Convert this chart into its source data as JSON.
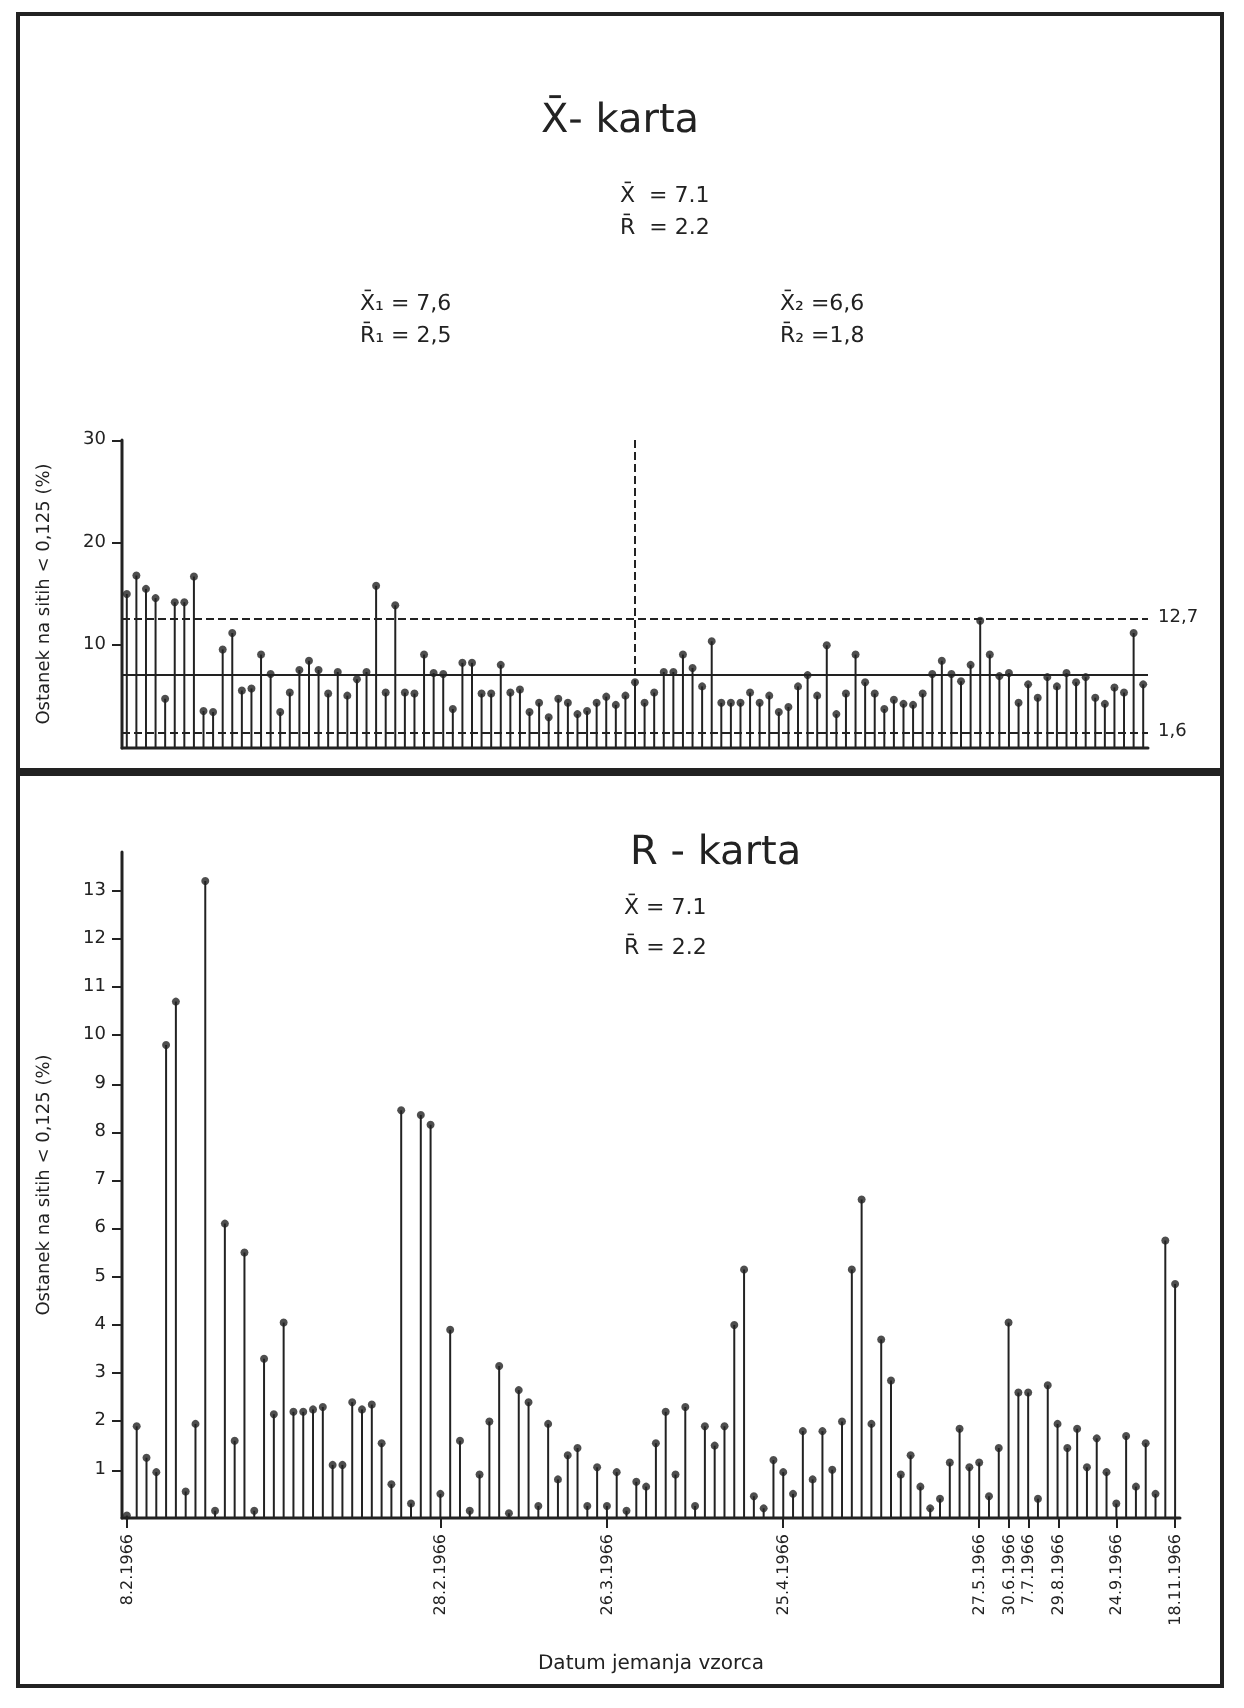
{
  "chart_data": [
    {
      "type": "lollipop",
      "title": "X̄- karta",
      "ylabel": "Ostanek na sitih < 0,125 (%)",
      "annotations": [
        "X̄  = 7.1",
        "R̄  = 2.2",
        "X̄₁ = 7,6",
        "R̄₁ = 2,5",
        "X̄₂ =6,6",
        "R̄₂ =1,8"
      ],
      "categories": [
        null,
        null,
        null,
        null,
        null,
        null,
        null,
        null,
        null,
        null,
        null,
        null,
        null,
        null,
        null,
        null,
        null,
        null,
        null,
        null,
        null,
        null,
        null,
        null,
        null,
        null,
        null,
        null,
        null,
        null,
        null,
        null,
        null,
        null,
        null,
        null,
        null,
        null,
        null,
        null,
        null,
        null,
        null,
        null,
        null,
        null,
        null,
        null,
        null,
        null,
        null,
        null,
        null,
        null,
        null,
        null,
        null,
        null,
        null,
        null,
        null,
        null,
        null,
        null,
        null,
        null,
        null,
        null,
        null,
        null,
        null,
        null,
        null,
        null,
        null,
        null,
        null,
        null,
        null,
        null,
        null,
        null,
        null,
        null,
        null,
        null,
        null,
        null,
        null,
        null,
        null,
        null,
        null,
        null,
        null,
        null,
        null,
        null,
        null,
        null,
        null,
        null,
        null,
        null,
        null,
        null,
        null
      ],
      "values": [
        15.0,
        16.8,
        15.5,
        14.6,
        4.8,
        14.2,
        14.2,
        16.7,
        3.6,
        3.5,
        9.6,
        11.2,
        5.6,
        5.8,
        9.1,
        7.2,
        3.5,
        5.4,
        7.6,
        8.5,
        7.6,
        5.3,
        7.4,
        5.1,
        6.7,
        7.4,
        15.8,
        5.4,
        13.9,
        5.4,
        5.3,
        9.1,
        7.3,
        7.2,
        3.8,
        8.3,
        8.3,
        5.3,
        5.3,
        8.1,
        5.4,
        5.7,
        3.5,
        4.4,
        3.0,
        4.8,
        4.4,
        3.3,
        3.6,
        4.4,
        5.0,
        4.2,
        5.1,
        6.4,
        4.4,
        5.4,
        7.4,
        7.4,
        9.1,
        7.8,
        6.0,
        10.4,
        4.4,
        4.4,
        4.4,
        5.4,
        4.4,
        5.1,
        3.5,
        4.0,
        6.0,
        7.1,
        5.1,
        10.0,
        3.3,
        5.3,
        9.1,
        6.4,
        5.3,
        3.8,
        4.7,
        4.3,
        4.2,
        5.3,
        7.2,
        8.5,
        7.2,
        6.5,
        8.1,
        12.4,
        9.1,
        7.0,
        7.3,
        4.4,
        6.2,
        4.9,
        6.9,
        6.0,
        7.3,
        6.4,
        6.9,
        4.9,
        4.3,
        5.9,
        5.4,
        11.2,
        6.2
      ],
      "color": "#222222",
      "marker": "circle",
      "ylim": [
        0,
        30
      ],
      "yticks": [
        10,
        20,
        30
      ],
      "tick_labels": "y",
      "grid": false,
      "ref_lines": [
        {
          "axis": "y",
          "value": 12.7,
          "label": "12,7",
          "line_style": "dashed"
        },
        {
          "axis": "y",
          "value": 7.1,
          "line_style": "solid"
        },
        {
          "axis": "y",
          "value": 1.6,
          "label": "1,6",
          "line_style": "dashed"
        }
      ]
    },
    {
      "type": "lollipop",
      "title": "R - karta",
      "xlabel": "Datum jemanja vzorca",
      "ylabel": "Ostanek na sitih < 0,125 (%)",
      "annotations": [
        "X̄ = 7.1",
        "R̄ = 2.2"
      ],
      "categories": [
        "8.2.1966",
        null,
        null,
        null,
        null,
        null,
        null,
        null,
        null,
        null,
        null,
        null,
        null,
        null,
        null,
        null,
        null,
        null,
        null,
        null,
        null,
        null,
        null,
        null,
        null,
        null,
        null,
        null,
        null,
        null,
        null,
        null,
        "28.2.1966",
        null,
        null,
        null,
        null,
        null,
        null,
        null,
        null,
        null,
        null,
        null,
        null,
        null,
        null,
        null,
        null,
        "26.3.1966",
        null,
        null,
        null,
        null,
        null,
        null,
        null,
        null,
        null,
        null,
        null,
        null,
        null,
        null,
        null,
        null,
        null,
        "25.4.1966",
        null,
        null,
        null,
        null,
        null,
        null,
        null,
        null,
        null,
        null,
        null,
        null,
        null,
        null,
        null,
        null,
        null,
        null,
        null,
        "27.5.1966",
        null,
        null,
        "30.6.1966",
        null,
        "7.7.1966",
        null,
        null,
        "29.8.1966",
        null,
        null,
        null,
        null,
        null,
        "24.9.1966",
        null,
        null,
        null,
        null,
        null,
        "18.11.1966"
      ],
      "values": [
        0.05,
        1.9,
        1.25,
        0.95,
        9.8,
        10.7,
        0.55,
        1.95,
        13.2,
        0.15,
        6.1,
        1.6,
        5.5,
        0.15,
        3.3,
        2.15,
        4.05,
        2.2,
        2.2,
        2.25,
        2.3,
        1.1,
        1.1,
        2.4,
        2.25,
        2.35,
        1.55,
        0.7,
        8.45,
        0.3,
        8.35,
        8.15,
        0.5,
        3.9,
        1.6,
        0.15,
        0.9,
        2.0,
        3.15,
        0.1,
        2.65,
        2.4,
        0.25,
        1.95,
        0.8,
        1.3,
        1.45,
        0.25,
        1.05,
        0.25,
        0.95,
        0.15,
        0.75,
        0.65,
        1.55,
        2.2,
        0.9,
        2.3,
        0.25,
        1.9,
        1.5,
        1.9,
        4.0,
        5.15,
        0.45,
        0.2,
        1.2,
        0.95,
        0.5,
        1.8,
        0.8,
        1.8,
        1.0,
        2.0,
        5.15,
        6.6,
        1.95,
        3.7,
        2.85,
        0.9,
        1.3,
        0.65,
        0.2,
        0.4,
        1.15,
        1.85,
        1.05,
        1.15,
        0.45,
        1.45,
        4.05,
        2.6,
        2.6,
        0.4,
        2.75,
        1.95,
        1.45,
        1.85,
        1.05,
        1.65,
        0.95,
        0.3,
        1.7,
        0.65,
        1.55,
        0.5,
        5.75,
        4.85
      ],
      "color": "#222222",
      "marker": "circle",
      "ylim": [
        0,
        13.8
      ],
      "yticks": [
        1,
        2,
        3,
        4,
        5,
        6,
        7,
        8,
        9,
        10,
        11,
        12,
        13
      ],
      "grid": false
    }
  ]
}
